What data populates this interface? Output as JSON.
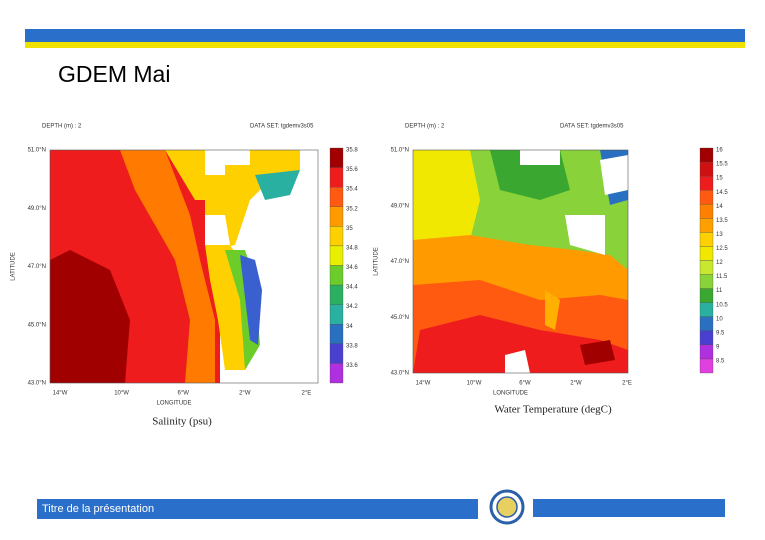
{
  "header": {
    "title": "GDEM Mai"
  },
  "footer": {
    "text": "Titre de la présentation"
  },
  "panels": [
    {
      "depth": "DEPTH (m) : 2",
      "dataset": "DATA SET: tgdemv3s05",
      "y_axis_label": "LATITUDE",
      "x_axis_label": "LONGITUDE",
      "latitude_labels": [
        "51.0°N",
        "49.0°N",
        "47.0°N",
        "45.0°N",
        "43.0°N"
      ],
      "longitude_labels": [
        "14°W",
        "10°W",
        "6°W",
        "2°W",
        "2°E"
      ],
      "colorbar_labels": [
        35.8,
        35.6,
        35.4,
        35.2,
        35,
        34.8,
        34.6,
        34.4,
        34.2,
        34,
        33.8,
        33.6
      ],
      "caption": "Salinity (psu)"
    },
    {
      "depth": "DEPTH (m) : 2",
      "dataset": "DATA SET: tgdemv3s05",
      "y_axis_label": "LATITUDE",
      "x_axis_label": "LONGITUDE",
      "latitude_labels": [
        "51.0°N",
        "49.0°N",
        "47.0°N",
        "45.0°N",
        "43.0°N"
      ],
      "longitude_labels": [
        "14°W",
        "10°W",
        "6°W",
        "2°W",
        "2°E"
      ],
      "colorbar_labels": [
        16,
        15.5,
        15,
        14.5,
        14,
        13.5,
        13,
        12.5,
        12,
        11.5,
        11,
        10.5,
        10,
        9.5,
        9,
        8.5
      ],
      "caption": "Water Temperature (degC)"
    }
  ]
}
